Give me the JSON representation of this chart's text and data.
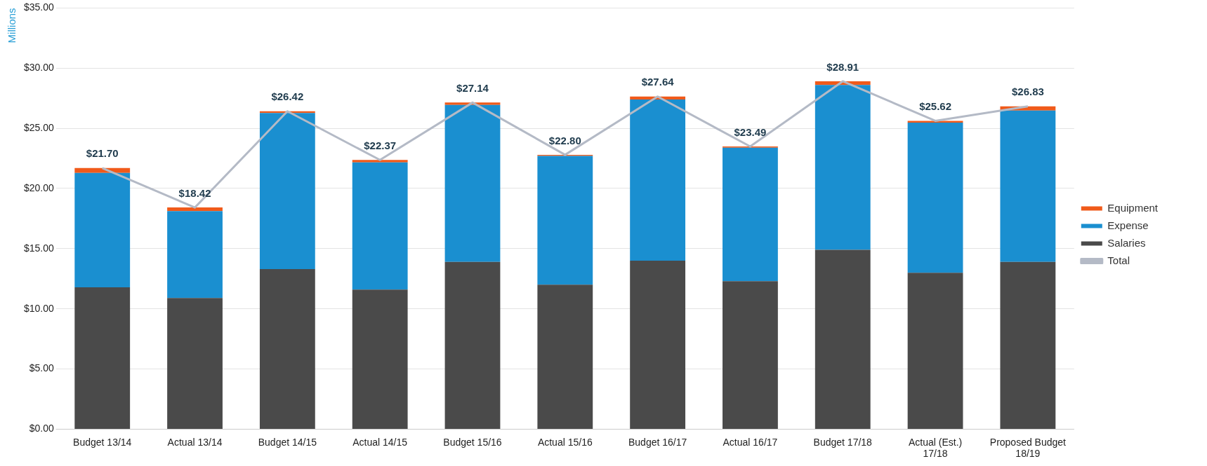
{
  "chart_data": {
    "type": "bar",
    "stacked": true,
    "ylabel": "Millions",
    "categories": [
      "Budget 13/14",
      "Actual 13/14",
      "Budget 14/15",
      "Actual 14/15",
      "Budget 15/16",
      "Actual 15/16",
      "Budget 16/17",
      "Actual 16/17",
      "Budget 17/18",
      "Actual (Est.) 17/18",
      "Proposed Budget 18/19"
    ],
    "series": [
      {
        "name": "Salaries",
        "color": "#4a4a4a",
        "values": [
          11.78,
          10.9,
          13.3,
          11.6,
          13.9,
          12.0,
          14.0,
          12.3,
          14.9,
          13.0,
          13.9
        ]
      },
      {
        "name": "Expense",
        "color": "#1a8fd0",
        "values": [
          9.52,
          7.22,
          12.97,
          10.57,
          13.04,
          10.7,
          13.39,
          11.09,
          13.71,
          12.47,
          12.58
        ]
      },
      {
        "name": "Equipment",
        "color": "#f05a1a",
        "values": [
          0.4,
          0.3,
          0.15,
          0.2,
          0.2,
          0.1,
          0.25,
          0.1,
          0.3,
          0.15,
          0.35
        ]
      },
      {
        "name": "Total",
        "type": "line",
        "color": "#b4bac6",
        "marker": "none",
        "values": [
          21.7,
          18.42,
          26.42,
          22.37,
          27.14,
          22.8,
          27.64,
          23.49,
          28.91,
          25.62,
          26.83
        ],
        "value_labels": [
          "$21.70",
          "$18.42",
          "$26.42",
          "$22.37",
          "$27.14",
          "$22.80",
          "$27.64",
          "$23.49",
          "$28.91",
          "$25.62",
          "$26.83"
        ]
      }
    ],
    "ylim": [
      0,
      35
    ],
    "yticks": [
      {
        "value": 0,
        "label": "$0.00"
      },
      {
        "value": 5,
        "label": "$5.00"
      },
      {
        "value": 10,
        "label": "$10.00"
      },
      {
        "value": 15,
        "label": "$15.00"
      },
      {
        "value": 20,
        "label": "$20.00"
      },
      {
        "value": 25,
        "label": "$25.00"
      },
      {
        "value": 30,
        "label": "$30.00"
      },
      {
        "value": 35,
        "label": "$35.00"
      }
    ],
    "grid": "y",
    "legend": "right"
  }
}
